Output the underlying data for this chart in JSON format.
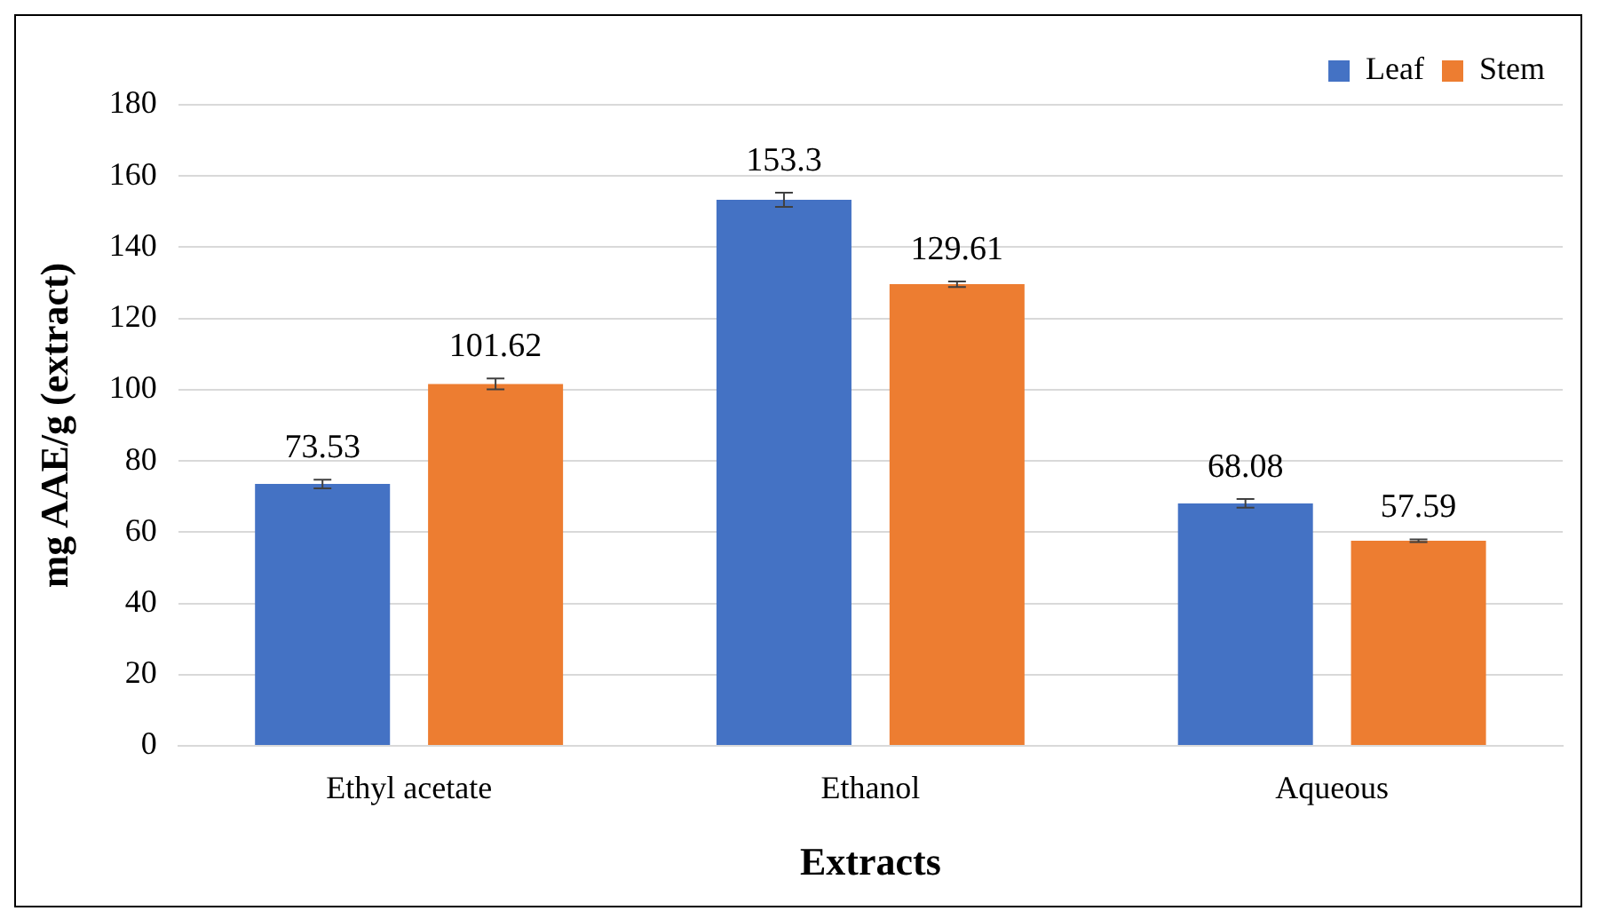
{
  "chart_data": {
    "type": "bar",
    "xlabel": "Extracts",
    "ylabel": "mg AAE/g (extract)",
    "categories": [
      "Ethyl acetate",
      "Ethanol",
      "Aqueous"
    ],
    "series": [
      {
        "name": "Leaf",
        "color": "#4472c4",
        "values": [
          73.53,
          153.3,
          68.08
        ],
        "errors": [
          1.2,
          2,
          1.2
        ]
      },
      {
        "name": "Stem",
        "color": "#ed7d31",
        "values": [
          101.62,
          129.61,
          57.59
        ],
        "errors": [
          1.5,
          0.8,
          0.4
        ]
      }
    ],
    "ylim": [
      0,
      180
    ],
    "yticks": [
      0,
      20,
      40,
      60,
      80,
      100,
      120,
      140,
      160,
      180
    ],
    "grid": "y",
    "legend": "top right",
    "data_labels": true
  }
}
